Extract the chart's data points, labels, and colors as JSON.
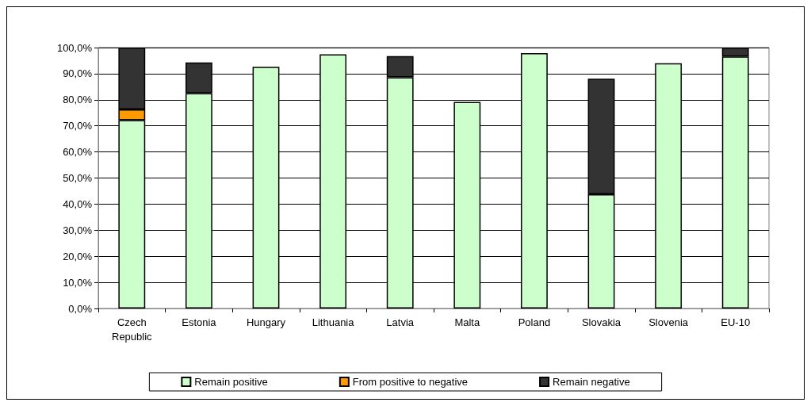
{
  "chart_data": {
    "type": "bar",
    "stacked": true,
    "categories": [
      "Czech\nRepublic",
      "Estonia",
      "Hungary",
      "Lithuania",
      "Latvia",
      "Malta",
      "Poland",
      "Slovakia",
      "Slovenia",
      "EU-10"
    ],
    "series": [
      {
        "name": "Remain positive",
        "color": "#ccffcc",
        "values": [
          72.2,
          82.5,
          92.6,
          97.4,
          88.6,
          79.2,
          97.9,
          43.8,
          94.0,
          96.6
        ]
      },
      {
        "name": "From positive to negative",
        "color": "#ff9900",
        "values": [
          4.1,
          null,
          null,
          null,
          null,
          null,
          null,
          null,
          null,
          null
        ]
      },
      {
        "name": "Remain negative",
        "color": "#333333",
        "values": [
          23.7,
          11.8,
          null,
          null,
          8.1,
          null,
          null,
          44.3,
          null,
          3.4
        ]
      }
    ],
    "ylim": [
      0,
      100
    ],
    "yticks": [
      {
        "value": 0,
        "label": "0,0%"
      },
      {
        "value": 10,
        "label": "10,0%"
      },
      {
        "value": 20,
        "label": "20,0%"
      },
      {
        "value": 30,
        "label": "30,0%"
      },
      {
        "value": 40,
        "label": "40,0%"
      },
      {
        "value": 50,
        "label": "50,0%"
      },
      {
        "value": 60,
        "label": "60,0%"
      },
      {
        "value": 70,
        "label": "70,0%"
      },
      {
        "value": 80,
        "label": "80,0%"
      },
      {
        "value": 90,
        "label": "90,0%"
      },
      {
        "value": 100,
        "label": "100,0%"
      }
    ],
    "grid": "y",
    "legend": "bottom"
  }
}
